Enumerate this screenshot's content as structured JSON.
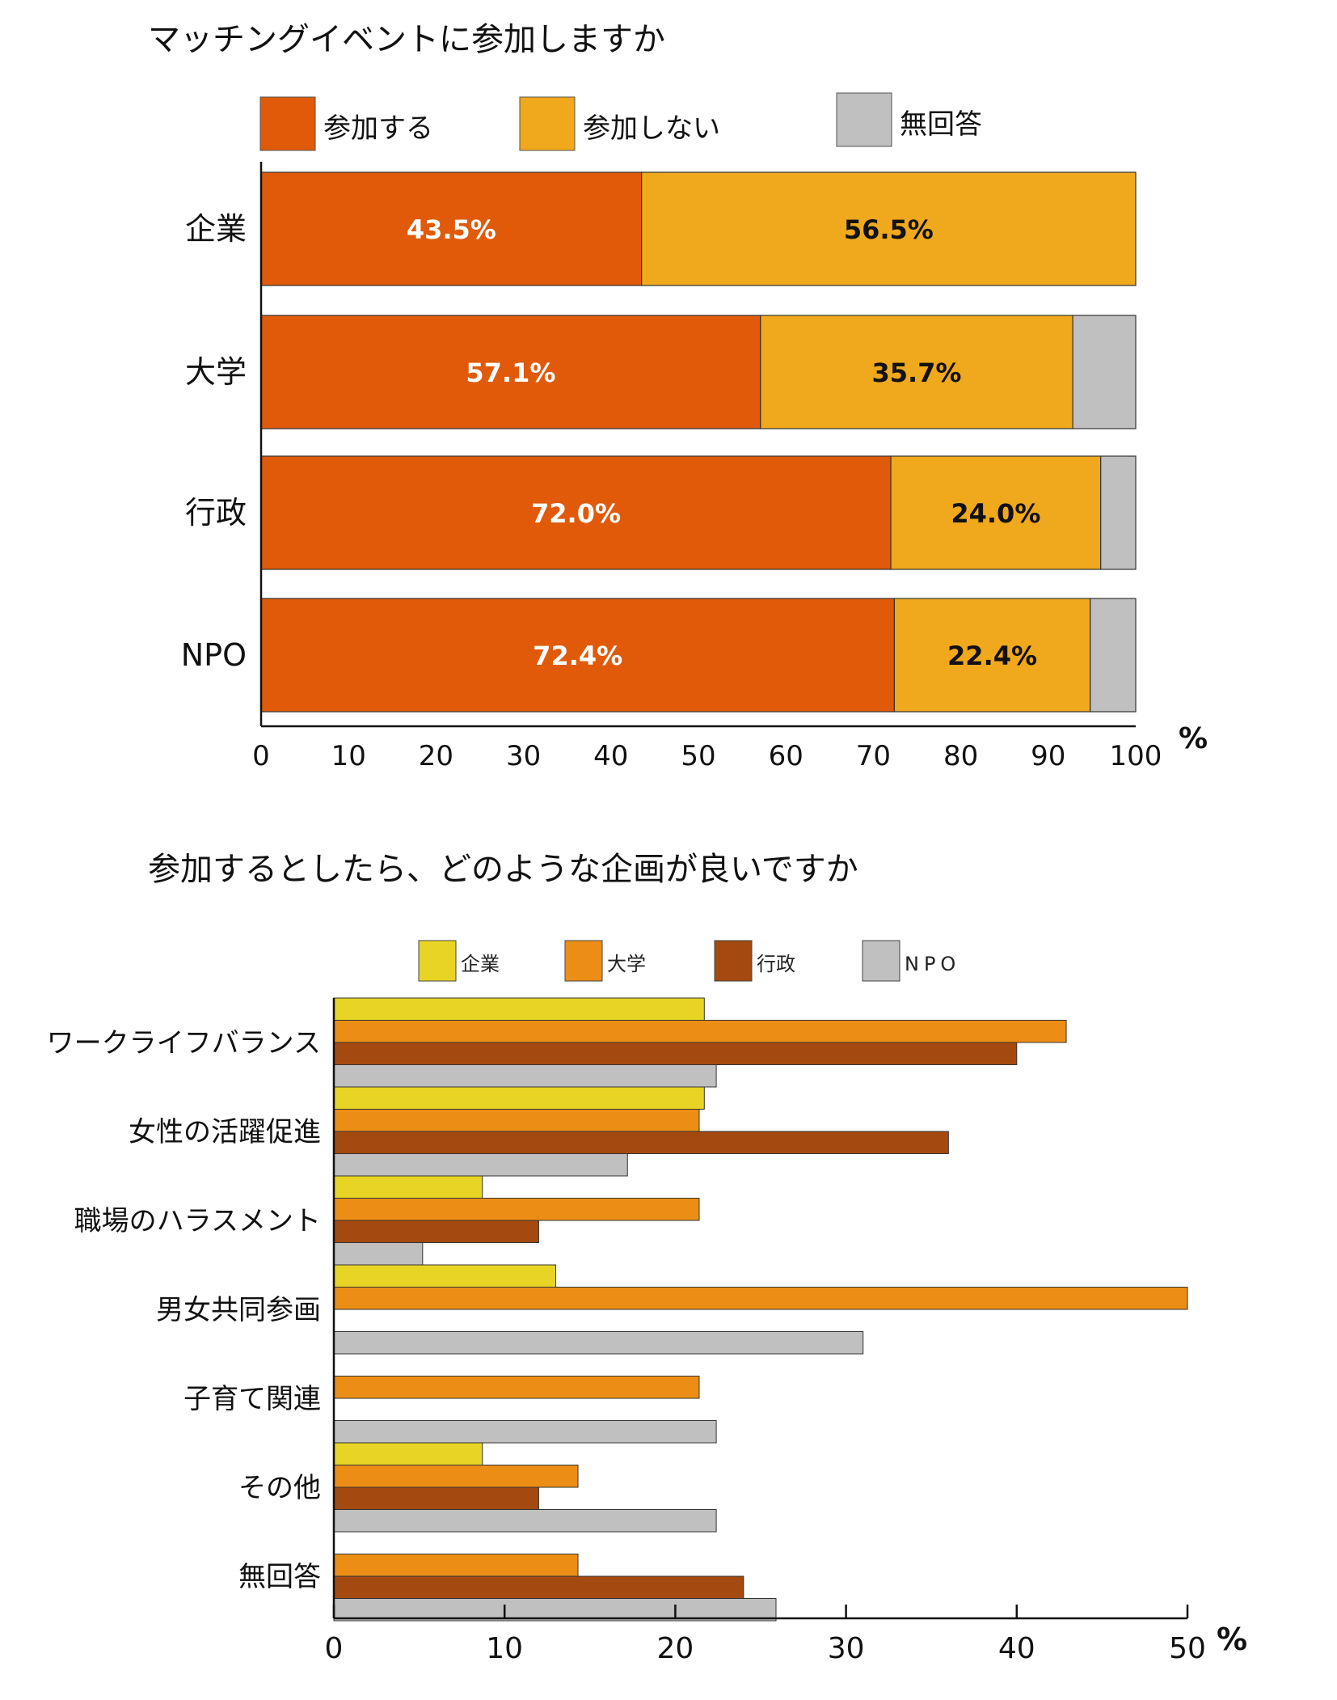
{
  "chart_data": [
    {
      "type": "bar",
      "orientation": "horizontal",
      "stacked": true,
      "title": "マッチングイベントに参加しますか",
      "categories": [
        "企業",
        "大学",
        "行政",
        "NPO"
      ],
      "series": [
        {
          "name": "参加する",
          "color": "#e05a0a",
          "values": [
            43.5,
            57.1,
            72.0,
            72.4
          ],
          "labels": [
            "43.5%",
            "57.1%",
            "72.0%",
            "72.4%"
          ]
        },
        {
          "name": "参加しない",
          "color": "#f0a81c",
          "values": [
            56.5,
            35.7,
            24.0,
            22.4
          ],
          "labels": [
            "56.5%",
            "35.7%",
            "24.0%",
            "22.4%"
          ]
        },
        {
          "name": "無回答",
          "color": "#c0c0c0",
          "values": [
            0,
            7.2,
            4.0,
            5.2
          ]
        }
      ],
      "xlim": [
        0,
        100
      ],
      "xticks": [
        "0",
        "10",
        "20",
        "30",
        "40",
        "50",
        "60",
        "70",
        "80",
        "90",
        "100"
      ],
      "xunit": "%",
      "legend": "top"
    },
    {
      "type": "bar",
      "orientation": "horizontal",
      "stacked": false,
      "title": "参加するとしたら、どのような企画が良いですか",
      "categories": [
        "ワークライフバランス",
        "女性の活躍促進",
        "職場のハラスメント",
        "男女共同参画",
        "子育て関連",
        "その他",
        "無回答"
      ],
      "series": [
        {
          "name": "企業",
          "color": "#e8d424",
          "values": [
            21.7,
            21.7,
            8.7,
            13.0,
            0,
            8.7,
            0
          ]
        },
        {
          "name": "大学",
          "color": "#ec8e16",
          "values": [
            42.9,
            21.4,
            21.4,
            50.0,
            21.4,
            14.3,
            14.3
          ]
        },
        {
          "name": "行政",
          "color": "#a44a10",
          "values": [
            40.0,
            36.0,
            12.0,
            0,
            0,
            12.0,
            24.0
          ]
        },
        {
          "name": "NPO",
          "color": "#c0c0c0",
          "values": [
            22.4,
            17.2,
            5.2,
            31.0,
            22.4,
            22.4,
            25.9
          ]
        }
      ],
      "xlim": [
        0,
        50
      ],
      "xticks": [
        "0",
        "10",
        "20",
        "30",
        "40",
        "50"
      ],
      "xunit": "%",
      "legend": "top"
    }
  ]
}
